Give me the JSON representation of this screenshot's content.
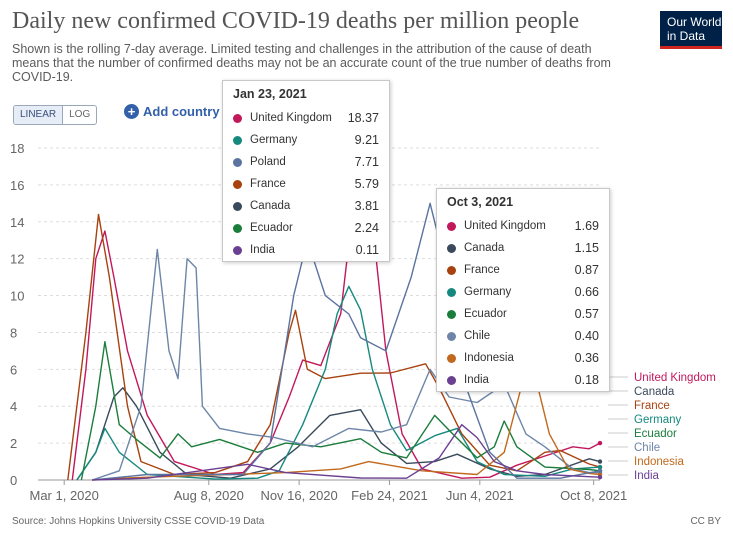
{
  "title": "Daily new confirmed COVID-19 deaths per million people",
  "subtitle": "Shown is the rolling 7-day average. Limited testing and challenges in the attribution of the cause of death means that the number of confirmed deaths may not be an accurate count of the true number of deaths from COVID-19.",
  "logo": {
    "line1": "Our World",
    "line2": "in Data"
  },
  "scale_toggle": {
    "linear": "LINEAR",
    "log": "LOG",
    "selected": "LINEAR"
  },
  "add_country_label": "Add country",
  "source": "Source: Johns Hopkins University CSSE COVID-19 Data",
  "license": "CC BY",
  "tooltip_1": {
    "date": "Jan 23, 2021",
    "rows": [
      {
        "name": "United Kingdom",
        "value": "18.37",
        "color": "#c2185b"
      },
      {
        "name": "Germany",
        "value": "9.21",
        "color": "#16897f"
      },
      {
        "name": "Poland",
        "value": "7.71",
        "color": "#5b73a0"
      },
      {
        "name": "France",
        "value": "5.79",
        "color": "#a8420f"
      },
      {
        "name": "Canada",
        "value": "3.81",
        "color": "#3a4a5c"
      },
      {
        "name": "Ecuador",
        "value": "2.24",
        "color": "#1b7d3c"
      },
      {
        "name": "India",
        "value": "0.11",
        "color": "#6b3f92"
      }
    ]
  },
  "tooltip_2": {
    "date": "Oct 3, 2021",
    "rows": [
      {
        "name": "United Kingdom",
        "value": "1.69",
        "color": "#c2185b"
      },
      {
        "name": "Canada",
        "value": "1.15",
        "color": "#3a4a5c"
      },
      {
        "name": "France",
        "value": "0.87",
        "color": "#a8420f"
      },
      {
        "name": "Germany",
        "value": "0.66",
        "color": "#16897f"
      },
      {
        "name": "Ecuador",
        "value": "0.57",
        "color": "#1b7d3c"
      },
      {
        "name": "Chile",
        "value": "0.40",
        "color": "#6d86a8"
      },
      {
        "name": "Indonesia",
        "value": "0.36",
        "color": "#c1691d"
      },
      {
        "name": "India",
        "value": "0.18",
        "color": "#6b3f92"
      }
    ]
  },
  "chart_data": {
    "type": "line",
    "title": "Daily new confirmed COVID-19 deaths per million people",
    "ylim": [
      0,
      18
    ],
    "y_ticks": [
      0,
      2,
      4,
      6,
      8,
      10,
      12,
      14,
      16,
      18
    ],
    "x_range": [
      "2020-02-01",
      "2021-10-15"
    ],
    "x_ticks": [
      {
        "date": "2020-03-01",
        "label": "Mar 1, 2020"
      },
      {
        "date": "2020-08-08",
        "label": "Aug 8, 2020"
      },
      {
        "date": "2020-11-16",
        "label": "Nov 16, 2020"
      },
      {
        "date": "2021-02-24",
        "label": "Feb 24, 2021"
      },
      {
        "date": "2021-06-04",
        "label": "Jun 4, 2021"
      },
      {
        "date": "2021-10-08",
        "label": "Oct 8, 2021"
      }
    ],
    "grid": true,
    "series": [
      {
        "name": "United Kingdom",
        "color": "#c2185b",
        "points": [
          [
            "2020-03-10",
            0
          ],
          [
            "2020-03-25",
            6
          ],
          [
            "2020-04-05",
            12
          ],
          [
            "2020-04-15",
            13.5
          ],
          [
            "2020-04-25",
            11
          ],
          [
            "2020-05-10",
            7
          ],
          [
            "2020-06-01",
            3.5
          ],
          [
            "2020-07-01",
            1
          ],
          [
            "2020-08-15",
            0.3
          ],
          [
            "2020-09-15",
            0.4
          ],
          [
            "2020-10-15",
            2
          ],
          [
            "2020-11-05",
            4.5
          ],
          [
            "2020-11-20",
            6.5
          ],
          [
            "2020-12-10",
            6.2
          ],
          [
            "2021-01-01",
            9
          ],
          [
            "2021-01-23",
            18.37
          ],
          [
            "2021-02-05",
            14
          ],
          [
            "2021-02-20",
            7
          ],
          [
            "2021-03-10",
            2.5
          ],
          [
            "2021-04-01",
            0.6
          ],
          [
            "2021-05-15",
            0.1
          ],
          [
            "2021-06-15",
            0.15
          ],
          [
            "2021-07-15",
            0.8
          ],
          [
            "2021-08-15",
            1.3
          ],
          [
            "2021-09-15",
            1.8
          ],
          [
            "2021-10-03",
            1.69
          ],
          [
            "2021-10-15",
            2
          ]
        ]
      },
      {
        "name": "Canada",
        "color": "#3a4a5c",
        "points": [
          [
            "2020-03-15",
            0
          ],
          [
            "2020-04-05",
            1.5
          ],
          [
            "2020-04-25",
            4.5
          ],
          [
            "2020-05-05",
            5
          ],
          [
            "2020-05-20",
            4
          ],
          [
            "2020-06-15",
            1.5
          ],
          [
            "2020-07-15",
            0.3
          ],
          [
            "2020-09-01",
            0.1
          ],
          [
            "2020-10-15",
            0.6
          ],
          [
            "2020-11-15",
            1.8
          ],
          [
            "2020-12-20",
            3.5
          ],
          [
            "2021-01-23",
            3.81
          ],
          [
            "2021-02-15",
            2
          ],
          [
            "2021-03-15",
            0.9
          ],
          [
            "2021-04-15",
            1
          ],
          [
            "2021-05-10",
            1.4
          ],
          [
            "2021-06-15",
            0.6
          ],
          [
            "2021-07-15",
            0.2
          ],
          [
            "2021-08-15",
            0.3
          ],
          [
            "2021-10-03",
            1.15
          ],
          [
            "2021-10-15",
            1
          ]
        ]
      },
      {
        "name": "France",
        "color": "#a8420f",
        "points": [
          [
            "2020-03-05",
            0
          ],
          [
            "2020-03-25",
            8
          ],
          [
            "2020-04-08",
            14.4
          ],
          [
            "2020-04-20",
            11
          ],
          [
            "2020-05-10",
            4
          ],
          [
            "2020-05-25",
            1
          ],
          [
            "2020-07-01",
            0.3
          ],
          [
            "2020-08-15",
            0.4
          ],
          [
            "2020-09-20",
            1
          ],
          [
            "2020-10-15",
            3
          ],
          [
            "2020-11-05",
            8
          ],
          [
            "2020-11-12",
            9.2
          ],
          [
            "2020-11-25",
            6
          ],
          [
            "2020-12-15",
            5.5
          ],
          [
            "2021-01-23",
            5.79
          ],
          [
            "2021-02-25",
            5.8
          ],
          [
            "2021-04-05",
            6.3
          ],
          [
            "2021-04-20",
            5
          ],
          [
            "2021-05-15",
            2.5
          ],
          [
            "2021-06-15",
            0.8
          ],
          [
            "2021-07-15",
            0.5
          ],
          [
            "2021-08-15",
            1.5
          ],
          [
            "2021-09-01",
            1.6
          ],
          [
            "2021-10-03",
            0.87
          ],
          [
            "2021-10-15",
            0.7
          ]
        ]
      },
      {
        "name": "Germany",
        "color": "#16897f",
        "points": [
          [
            "2020-03-15",
            0
          ],
          [
            "2020-04-05",
            1.5
          ],
          [
            "2020-04-15",
            2.8
          ],
          [
            "2020-05-01",
            1.5
          ],
          [
            "2020-06-01",
            0.3
          ],
          [
            "2020-08-15",
            0.05
          ],
          [
            "2020-10-01",
            0.1
          ],
          [
            "2020-10-25",
            0.5
          ],
          [
            "2020-11-20",
            3
          ],
          [
            "2020-12-15",
            6
          ],
          [
            "2020-12-28",
            9
          ],
          [
            "2021-01-10",
            10.5
          ],
          [
            "2021-01-23",
            9.21
          ],
          [
            "2021-02-05",
            6
          ],
          [
            "2021-02-25",
            3
          ],
          [
            "2021-03-15",
            1.6
          ],
          [
            "2021-04-15",
            2.4
          ],
          [
            "2021-05-10",
            2.8
          ],
          [
            "2021-06-01",
            1
          ],
          [
            "2021-07-01",
            0.3
          ],
          [
            "2021-08-15",
            0.2
          ],
          [
            "2021-09-15",
            0.6
          ],
          [
            "2021-10-03",
            0.66
          ],
          [
            "2021-10-15",
            0.7
          ]
        ]
      },
      {
        "name": "Ecuador",
        "color": "#1b7d3c",
        "points": [
          [
            "2020-03-20",
            0
          ],
          [
            "2020-04-05",
            4
          ],
          [
            "2020-04-15",
            7.5
          ],
          [
            "2020-05-01",
            3
          ],
          [
            "2020-05-20",
            2.2
          ],
          [
            "2020-06-15",
            1.2
          ],
          [
            "2020-07-05",
            2.5
          ],
          [
            "2020-07-20",
            1.8
          ],
          [
            "2020-08-20",
            2.2
          ],
          [
            "2020-10-01",
            1.5
          ],
          [
            "2020-11-01",
            2
          ],
          [
            "2020-12-10",
            1.8
          ],
          [
            "2021-01-23",
            2.24
          ],
          [
            "2021-02-15",
            1.5
          ],
          [
            "2021-03-15",
            1.2
          ],
          [
            "2021-04-15",
            3.5
          ],
          [
            "2021-05-05",
            2.5
          ],
          [
            "2021-06-01",
            1.2
          ],
          [
            "2021-06-20",
            1.8
          ],
          [
            "2021-07-01",
            3.2
          ],
          [
            "2021-07-15",
            1.8
          ],
          [
            "2021-08-15",
            0.7
          ],
          [
            "2021-10-03",
            0.57
          ],
          [
            "2021-10-15",
            0.5
          ]
        ]
      },
      {
        "name": "Chile",
        "color": "#6d86a8",
        "points": [
          [
            "2020-04-01",
            0
          ],
          [
            "2020-05-01",
            0.5
          ],
          [
            "2020-05-25",
            4
          ],
          [
            "2020-06-12",
            12.5
          ],
          [
            "2020-06-25",
            7
          ],
          [
            "2020-07-05",
            5.5
          ],
          [
            "2020-07-15",
            12
          ],
          [
            "2020-07-25",
            11.5
          ],
          [
            "2020-08-01",
            4
          ],
          [
            "2020-08-20",
            2.8
          ],
          [
            "2020-09-20",
            2.5
          ],
          [
            "2020-10-20",
            2.3
          ],
          [
            "2020-12-01",
            1.8
          ],
          [
            "2021-01-10",
            2.8
          ],
          [
            "2021-02-15",
            2.6
          ],
          [
            "2021-03-15",
            3
          ],
          [
            "2021-04-10",
            6
          ],
          [
            "2021-05-01",
            4.5
          ],
          [
            "2021-06-01",
            4.2
          ],
          [
            "2021-07-01",
            5.2
          ],
          [
            "2021-07-25",
            2.5
          ],
          [
            "2021-08-15",
            1.8
          ],
          [
            "2021-09-15",
            0.6
          ],
          [
            "2021-10-03",
            0.4
          ],
          [
            "2021-10-15",
            0.4
          ]
        ]
      },
      {
        "name": "Indonesia",
        "color": "#c1691d",
        "points": [
          [
            "2020-04-01",
            0
          ],
          [
            "2020-05-01",
            0.1
          ],
          [
            "2020-07-01",
            0.2
          ],
          [
            "2020-09-01",
            0.3
          ],
          [
            "2020-11-01",
            0.4
          ],
          [
            "2021-01-01",
            0.6
          ],
          [
            "2021-02-01",
            1
          ],
          [
            "2021-04-01",
            0.5
          ],
          [
            "2021-06-01",
            0.3
          ],
          [
            "2021-07-01",
            1.5
          ],
          [
            "2021-07-25",
            6
          ],
          [
            "2021-08-05",
            5.5
          ],
          [
            "2021-08-20",
            2.5
          ],
          [
            "2021-09-10",
            0.6
          ],
          [
            "2021-10-03",
            0.36
          ],
          [
            "2021-10-15",
            0.3
          ]
        ]
      },
      {
        "name": "Poland",
        "color": "#5b73a0",
        "points": [
          [
            "2020-04-01",
            0
          ],
          [
            "2020-06-01",
            0.3
          ],
          [
            "2020-09-15",
            0.3
          ],
          [
            "2020-10-15",
            2
          ],
          [
            "2020-11-10",
            10
          ],
          [
            "2020-11-25",
            13
          ],
          [
            "2020-12-15",
            10
          ],
          [
            "2021-01-10",
            9
          ],
          [
            "2021-01-23",
            7.71
          ],
          [
            "2021-02-20",
            7
          ],
          [
            "2021-03-20",
            11
          ],
          [
            "2021-04-10",
            15
          ],
          [
            "2021-04-25",
            12
          ],
          [
            "2021-05-20",
            5
          ],
          [
            "2021-06-15",
            1.5
          ],
          [
            "2021-07-15",
            0.1
          ],
          [
            "2021-09-01",
            0.1
          ],
          [
            "2021-10-15",
            0.5
          ]
        ]
      },
      {
        "name": "India",
        "color": "#6b3f92",
        "points": [
          [
            "2020-04-01",
            0
          ],
          [
            "2020-06-01",
            0.1
          ],
          [
            "2020-09-20",
            0.85
          ],
          [
            "2020-11-01",
            0.4
          ],
          [
            "2021-01-23",
            0.11
          ],
          [
            "2021-03-15",
            0.1
          ],
          [
            "2021-04-20",
            1.2
          ],
          [
            "2021-05-15",
            3
          ],
          [
            "2021-06-01",
            2.3
          ],
          [
            "2021-06-20",
            1
          ],
          [
            "2021-07-15",
            0.5
          ],
          [
            "2021-08-15",
            0.3
          ],
          [
            "2021-10-03",
            0.18
          ],
          [
            "2021-10-15",
            0.15
          ]
        ]
      }
    ],
    "end_labels": [
      "United Kingdom",
      "Canada",
      "France",
      "Germany",
      "Ecuador",
      "Chile",
      "Indonesia",
      "India"
    ]
  }
}
